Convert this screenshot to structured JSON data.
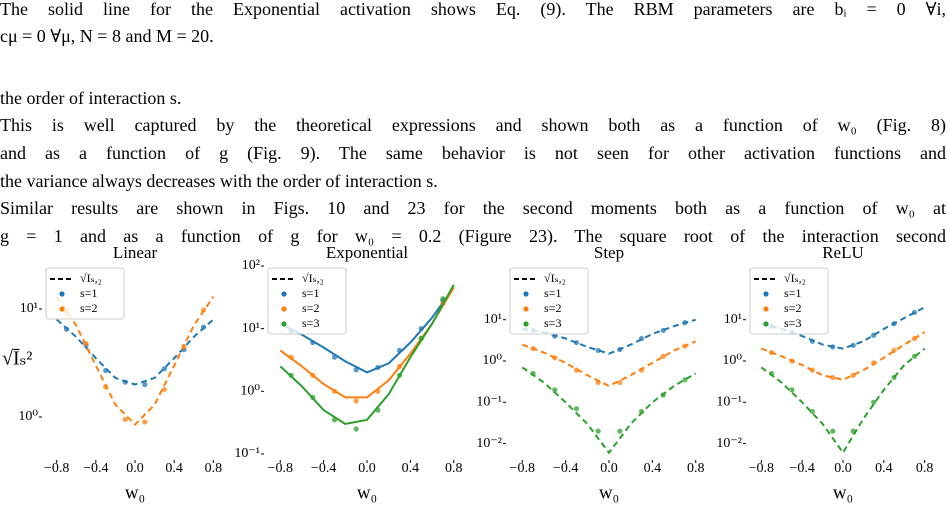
{
  "text": {
    "lines": [
      "The solid line for the Exponential activation shows Eq. (9). The RBM parameters are bᵢ = 0 ∀i,",
      "cμ = 0 ∀μ, N = 8 and M = 20.",
      "the order of interaction s.",
      "This is well captured by the theoretical expressions and shown both as a function of w₀ (Fig. 8)",
      "and as a function of g (Fig. 9). The same behavior is not seen for other activation functions and",
      "the variance always decreases with the order of interaction s.",
      "Similar results are shown in Figs. 10 and  23 for the second moments both as a function of w₀ at",
      "g = 1 and as a function of g for w₀ = 0.2 (Figure 23). The square root of the interaction second"
    ]
  },
  "chart_data": [
    {
      "type": "scatter",
      "title": "Linear",
      "xlabel": "w₀",
      "ylabel": "√Īₛ²",
      "log_y": true,
      "line_style": "dashed",
      "legend_line": "√Iₛ,₂",
      "xlim": [
        -0.95,
        0.95
      ],
      "xticks": [
        {
          "value": -0.8,
          "label": "−0.8"
        },
        {
          "value": -0.4,
          "label": "−0.4"
        },
        {
          "value": 0,
          "label": "0.0"
        },
        0.4,
        0.8
      ],
      "ylim": [
        0.4,
        25
      ],
      "yticks": [
        {
          "value": 1,
          "label": "10⁰"
        },
        {
          "value": 10,
          "label": "10¹"
        }
      ],
      "line_x": [
        -0.8,
        -0.6,
        -0.4,
        -0.2,
        0,
        0.2,
        0.4,
        0.6,
        0.8
      ],
      "x": [
        -0.7,
        -0.5,
        -0.3,
        -0.1,
        0.1,
        0.3,
        0.5,
        0.7
      ],
      "series": [
        {
          "name": "s=1",
          "color": "#1f77b4",
          "values": [
            6.5,
            4.6,
            2.7,
            2.1,
            2.0,
            2.8,
            4.2,
            6.8
          ],
          "line_values": [
            8,
            5.5,
            3.5,
            2.3,
            2,
            2.3,
            3.5,
            5.5,
            8
          ]
        },
        {
          "name": "s=2",
          "color": "#ff7f0e",
          "values": [
            9.5,
            4.8,
            1.9,
            0.95,
            0.9,
            1.8,
            4.5,
            9.8
          ],
          "line_values": [
            13,
            7,
            3,
            1.3,
            0.85,
            1.3,
            3,
            7,
            13
          ]
        }
      ]
    },
    {
      "type": "scatter",
      "title": "Exponential",
      "xlabel": "w₀",
      "log_y": true,
      "line_style": "solid",
      "legend_line": "√Iₛ,₂",
      "xlim": [
        -0.95,
        0.95
      ],
      "xticks": [
        {
          "value": -0.8,
          "label": "−0.8"
        },
        {
          "value": -0.4,
          "label": "−0.4"
        },
        {
          "value": 0,
          "label": "0.0"
        },
        0.4,
        0.8
      ],
      "ylim": [
        0.08,
        100
      ],
      "yticks": [
        {
          "value": 0.1,
          "label": "10⁻¹"
        },
        {
          "value": 1,
          "label": "10⁰"
        },
        {
          "value": 10,
          "label": "10¹"
        },
        {
          "value": 100,
          "label": "10²"
        }
      ],
      "line_x": [
        -0.8,
        -0.6,
        -0.4,
        -0.2,
        0,
        0.2,
        0.4,
        0.6,
        0.8
      ],
      "x": [
        -0.7,
        -0.5,
        -0.3,
        -0.1,
        0.1,
        0.3,
        0.5,
        0.7
      ],
      "series": [
        {
          "name": "s=1",
          "color": "#1f77b4",
          "values": [
            9,
            6,
            3.5,
            2.2,
            2.4,
            4.5,
            10,
            28
          ],
          "line_values": [
            12,
            8,
            5,
            3,
            2,
            2.8,
            6,
            15,
            45
          ]
        },
        {
          "name": "s=2",
          "color": "#ff7f0e",
          "values": [
            3.5,
            1.8,
            1,
            0.7,
            1,
            2.5,
            7,
            25
          ],
          "line_values": [
            4.5,
            2.5,
            1.3,
            0.8,
            0.8,
            1.5,
            4,
            12,
            45
          ]
        },
        {
          "name": "s=3",
          "color": "#2ca02c",
          "values": [
            1.8,
            0.8,
            0.35,
            0.25,
            0.5,
            1.8,
            7,
            30
          ],
          "line_values": [
            2.5,
            1.2,
            0.5,
            0.3,
            0.35,
            0.9,
            3.5,
            12,
            50
          ]
        }
      ]
    },
    {
      "type": "scatter",
      "title": "Step",
      "xlabel": "w₀",
      "log_y": true,
      "line_style": "dashed",
      "legend_line": "√Iₛ,₂",
      "xlim": [
        -0.95,
        0.95
      ],
      "xticks": [
        {
          "value": -0.8,
          "label": "−0.8"
        },
        {
          "value": -0.4,
          "label": "−0.4"
        },
        {
          "value": 0,
          "label": "0.0"
        },
        0.4,
        0.8
      ],
      "ylim": [
        0.004,
        200
      ],
      "yticks": [
        {
          "value": 0.01,
          "label": "10⁻²"
        },
        {
          "value": 0.1,
          "label": "10⁻¹"
        },
        {
          "value": 1,
          "label": "10⁰"
        },
        {
          "value": 10,
          "label": "10¹"
        }
      ],
      "line_x": [
        -0.8,
        -0.6,
        -0.4,
        -0.2,
        0,
        0.2,
        0.4,
        0.6,
        0.8
      ],
      "x": [
        -0.7,
        -0.5,
        -0.3,
        -0.1,
        0.1,
        0.3,
        0.5,
        0.7
      ],
      "series": [
        {
          "name": "s=1",
          "color": "#1f77b4",
          "values": [
            5.5,
            4,
            2.8,
            1.8,
            1.9,
            3.5,
            5.5,
            8.5
          ],
          "line_values": [
            6,
            5,
            3.5,
            2.2,
            1.5,
            2.5,
            4.5,
            7,
            10
          ]
        },
        {
          "name": "s=2",
          "color": "#ff7f0e",
          "values": [
            2,
            1.2,
            0.6,
            0.3,
            0.3,
            0.6,
            1.3,
            2.3
          ],
          "line_values": [
            2.5,
            1.6,
            0.9,
            0.45,
            0.25,
            0.45,
            0.9,
            1.8,
            3
          ]
        },
        {
          "name": "s=3",
          "color": "#2ca02c",
          "values": [
            0.5,
            0.2,
            0.07,
            0.02,
            0.02,
            0.06,
            0.15,
            0.35
          ],
          "line_values": [
            0.7,
            0.3,
            0.1,
            0.03,
            0.006,
            0.03,
            0.1,
            0.25,
            0.5
          ]
        }
      ]
    },
    {
      "type": "scatter",
      "title": "ReLU",
      "xlabel": "w₀",
      "log_y": true,
      "line_style": "dashed",
      "legend_line": "√Iₛ,₂",
      "xlim": [
        -0.95,
        0.95
      ],
      "xticks": [
        {
          "value": -0.8,
          "label": "−0.8"
        },
        {
          "value": -0.4,
          "label": "−0.4"
        },
        {
          "value": 0,
          "label": "0.0"
        },
        0.4,
        0.8
      ],
      "ylim": [
        0.004,
        200
      ],
      "yticks": [
        {
          "value": 0.01,
          "label": "10⁻²"
        },
        {
          "value": 0.1,
          "label": "10⁻¹"
        },
        {
          "value": 1,
          "label": "10⁰"
        },
        {
          "value": 10,
          "label": "10¹"
        }
      ],
      "line_x": [
        -0.8,
        -0.6,
        -0.4,
        -0.2,
        0,
        0.2,
        0.4,
        0.6,
        0.8
      ],
      "x": [
        -0.7,
        -0.5,
        -0.3,
        -0.1,
        0.1,
        0.3,
        0.5,
        0.7
      ],
      "series": [
        {
          "name": "s=1",
          "color": "#1f77b4",
          "values": [
            7,
            5,
            3,
            2.2,
            2.4,
            4.2,
            8,
            15
          ],
          "line_values": [
            8,
            6,
            4,
            2.5,
            2,
            3,
            6,
            11,
            20
          ]
        },
        {
          "name": "s=2",
          "color": "#ff7f0e",
          "values": [
            1.6,
            1,
            0.6,
            0.4,
            0.45,
            0.9,
            1.8,
            3.5
          ],
          "line_values": [
            2,
            1.3,
            0.8,
            0.45,
            0.35,
            0.6,
            1.2,
            2.5,
            5
          ]
        },
        {
          "name": "s=3",
          "color": "#2ca02c",
          "values": [
            0.5,
            0.2,
            0.06,
            0.02,
            0.02,
            0.1,
            0.4,
            1.3
          ],
          "line_values": [
            0.7,
            0.3,
            0.1,
            0.03,
            0.006,
            0.04,
            0.2,
            0.8,
            2
          ]
        }
      ]
    }
  ]
}
